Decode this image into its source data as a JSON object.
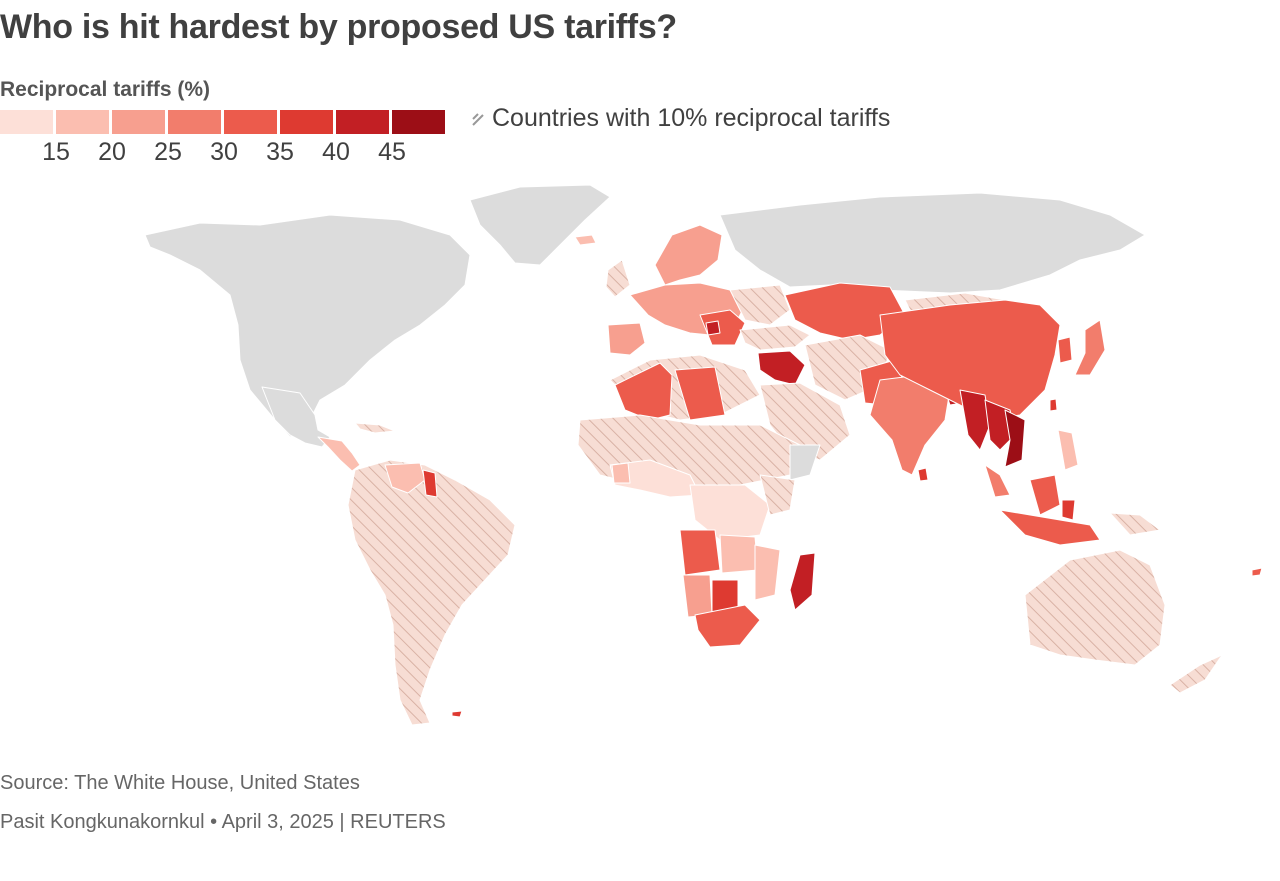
{
  "header": {
    "title": "Who is hit hardest by proposed US tariffs?"
  },
  "legend": {
    "title": "Reciprocal tariffs (%)",
    "ticks": [
      "15",
      "20",
      "25",
      "30",
      "35",
      "40",
      "45"
    ],
    "colors": [
      "#fde0d8",
      "#fbbeb0",
      "#f79f8f",
      "#f27d6c",
      "#ec5b4c",
      "#de3a31",
      "#c21f24",
      "#9c0e16"
    ],
    "hatch_label": "Countries with 10% reciprocal tariffs",
    "hatch_fill": "#f7ddd4",
    "hatch_stroke": "#d8b5a8",
    "no_data_color": "#dcdcdc"
  },
  "footer": {
    "source": "Source: The White House, United States",
    "credit": "Pasit Kongkunakornkul • April 3, 2025 | REUTERS"
  }
}
